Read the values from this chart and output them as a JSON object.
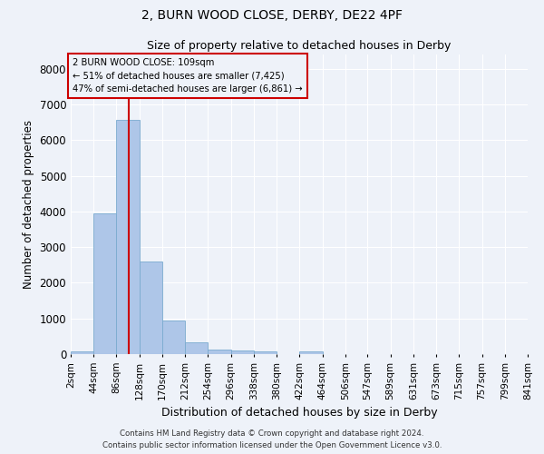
{
  "title1": "2, BURN WOOD CLOSE, DERBY, DE22 4PF",
  "title2": "Size of property relative to detached houses in Derby",
  "xlabel": "Distribution of detached houses by size in Derby",
  "ylabel": "Number of detached properties",
  "bar_values": [
    80,
    3950,
    6580,
    2600,
    950,
    320,
    130,
    90,
    70,
    0,
    70,
    0,
    0,
    0,
    0,
    0,
    0,
    0,
    0,
    0
  ],
  "bin_edges": [
    2,
    44,
    86,
    128,
    170,
    212,
    254,
    296,
    338,
    380,
    422,
    464,
    506,
    547,
    589,
    631,
    673,
    715,
    757,
    799,
    841
  ],
  "bin_labels": [
    "2sqm",
    "44sqm",
    "86sqm",
    "128sqm",
    "170sqm",
    "212sqm",
    "254sqm",
    "296sqm",
    "338sqm",
    "380sqm",
    "422sqm",
    "464sqm",
    "506sqm",
    "547sqm",
    "589sqm",
    "631sqm",
    "673sqm",
    "715sqm",
    "757sqm",
    "799sqm",
    "841sqm"
  ],
  "property_line_x": 109,
  "annotation_line1": "2 BURN WOOD CLOSE: 109sqm",
  "annotation_line2": "← 51% of detached houses are smaller (7,425)",
  "annotation_line3": "47% of semi-detached houses are larger (6,861) →",
  "bar_color": "#aec6e8",
  "bar_edge_color": "#7aabcf",
  "line_color": "#cc0000",
  "box_edge_color": "#cc0000",
  "ylim": [
    0,
    8400
  ],
  "yticks": [
    0,
    1000,
    2000,
    3000,
    4000,
    5000,
    6000,
    7000,
    8000
  ],
  "footer1": "Contains HM Land Registry data © Crown copyright and database right 2024.",
  "footer2": "Contains public sector information licensed under the Open Government Licence v3.0.",
  "bg_color": "#eef2f9",
  "grid_color": "#ffffff"
}
